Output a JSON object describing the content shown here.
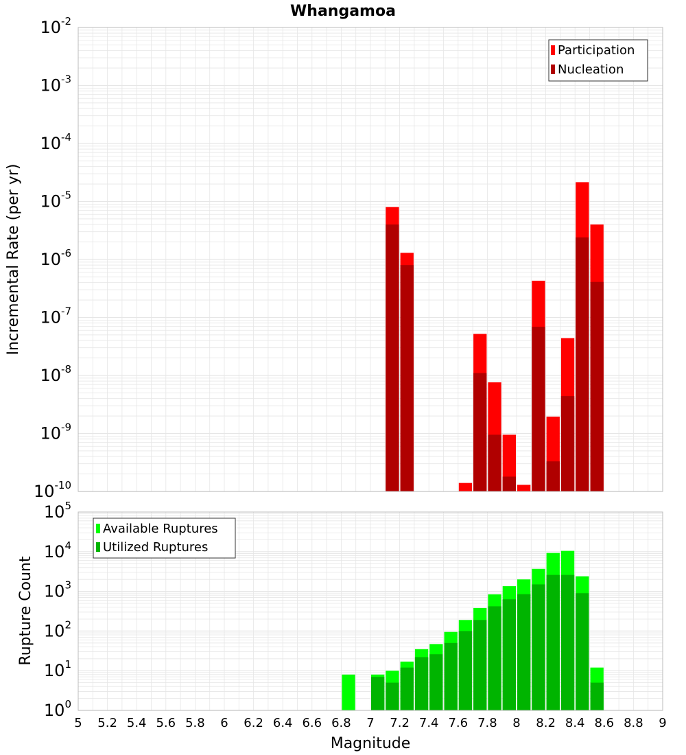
{
  "title": "Whangamoa",
  "xlabel": "Magnitude",
  "x_ticks": [
    "5",
    "5.2",
    "5.4",
    "5.6",
    "5.8",
    "6",
    "6.2",
    "6.4",
    "6.6",
    "6.8",
    "7",
    "7.2",
    "7.4",
    "7.6",
    "7.8",
    "8",
    "8.2",
    "8.4",
    "8.6",
    "8.8",
    "9"
  ],
  "colors": {
    "participation": "#ff0000",
    "nucleation": "#b00000",
    "available": "#00ff00",
    "utilized": "#00b400",
    "grid": "#e6e6e6",
    "frame": "#bbbbbb"
  },
  "chart_data": [
    {
      "type": "bar",
      "title": "Whangamoa",
      "xlabel": "Magnitude",
      "ylabel": "Incremental Rate (per yr)",
      "y_scale": "log",
      "xlim": [
        5,
        9
      ],
      "ylim": [
        1e-10,
        0.01
      ],
      "y_ticks": [
        {
          "base": "10",
          "exp": "-10",
          "value": 1e-10
        },
        {
          "base": "10",
          "exp": "-9",
          "value": 1e-09
        },
        {
          "base": "10",
          "exp": "-8",
          "value": 1e-08
        },
        {
          "base": "10",
          "exp": "-7",
          "value": 1e-07
        },
        {
          "base": "10",
          "exp": "-6",
          "value": 1e-06
        },
        {
          "base": "10",
          "exp": "-5",
          "value": 1e-05
        },
        {
          "base": "10",
          "exp": "-4",
          "value": 0.0001
        },
        {
          "base": "10",
          "exp": "-3",
          "value": 0.001
        },
        {
          "base": "10",
          "exp": "-2",
          "value": 0.01
        }
      ],
      "legend_position": "top-right",
      "grid": true,
      "bin_width": 0.1,
      "series": [
        {
          "name": "Participation",
          "color": "#ff0000",
          "points": [
            [
              7.15,
              8e-06
            ],
            [
              7.25,
              1.3e-06
            ],
            [
              7.65,
              1.4e-10
            ],
            [
              7.75,
              5.2e-08
            ],
            [
              7.85,
              7.6e-09
            ],
            [
              7.95,
              9.5e-10
            ],
            [
              8.05,
              1.3e-10
            ],
            [
              8.15,
              4.3e-07
            ],
            [
              8.25,
              1.95e-09
            ],
            [
              8.35,
              4.4e-08
            ],
            [
              8.45,
              2.15e-05
            ],
            [
              8.55,
              4e-06
            ]
          ]
        },
        {
          "name": "Nucleation",
          "color": "#b00000",
          "points": [
            [
              7.15,
              4e-06
            ],
            [
              7.25,
              8e-07
            ],
            [
              7.75,
              1.1e-08
            ],
            [
              7.85,
              9.5e-10
            ],
            [
              7.95,
              1.8e-10
            ],
            [
              8.15,
              6.9e-08
            ],
            [
              8.25,
              3.3e-10
            ],
            [
              8.35,
              4.4e-09
            ],
            [
              8.45,
              2.4e-06
            ],
            [
              8.55,
              4.1e-07
            ]
          ]
        }
      ]
    },
    {
      "type": "bar",
      "xlabel": "Magnitude",
      "ylabel": "Rupture Count",
      "y_scale": "log",
      "xlim": [
        5,
        9
      ],
      "ylim": [
        1,
        100000.0
      ],
      "y_ticks": [
        {
          "base": "10",
          "exp": "0",
          "value": 1
        },
        {
          "base": "10",
          "exp": "1",
          "value": 10
        },
        {
          "base": "10",
          "exp": "2",
          "value": 100
        },
        {
          "base": "10",
          "exp": "3",
          "value": 1000
        },
        {
          "base": "10",
          "exp": "4",
          "value": 10000
        },
        {
          "base": "10",
          "exp": "5",
          "value": 100000
        }
      ],
      "legend_position": "top-left",
      "grid": true,
      "bin_width": 0.1,
      "series": [
        {
          "name": "Available Ruptures",
          "color": "#00ff00",
          "points": [
            [
              6.85,
              8
            ],
            [
              7.05,
              8
            ],
            [
              7.15,
              10
            ],
            [
              7.25,
              17
            ],
            [
              7.35,
              35
            ],
            [
              7.45,
              47
            ],
            [
              7.55,
              95
            ],
            [
              7.65,
              190
            ],
            [
              7.75,
              380
            ],
            [
              7.85,
              840
            ],
            [
              7.95,
              1350
            ],
            [
              8.05,
              2000
            ],
            [
              8.15,
              3700
            ],
            [
              8.25,
              9300
            ],
            [
              8.35,
              10500
            ],
            [
              8.45,
              2400
            ],
            [
              8.55,
              12
            ]
          ]
        },
        {
          "name": "Utilized Ruptures",
          "color": "#00b400",
          "points": [
            [
              7.05,
              7
            ],
            [
              7.15,
              5
            ],
            [
              7.25,
              12
            ],
            [
              7.35,
              22
            ],
            [
              7.45,
              26
            ],
            [
              7.55,
              50
            ],
            [
              7.65,
              100
            ],
            [
              7.75,
              190
            ],
            [
              7.85,
              420
            ],
            [
              7.95,
              630
            ],
            [
              8.05,
              850
            ],
            [
              8.15,
              1500
            ],
            [
              8.25,
              2600
            ],
            [
              8.35,
              2600
            ],
            [
              8.45,
              900
            ],
            [
              8.55,
              5
            ]
          ]
        }
      ]
    }
  ]
}
